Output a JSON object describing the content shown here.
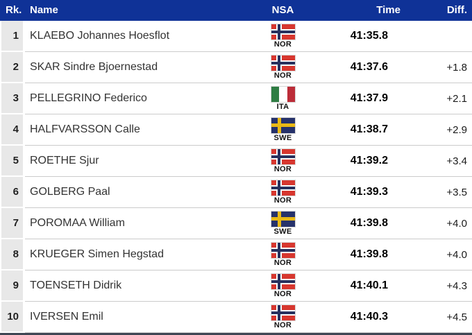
{
  "table": {
    "columns": {
      "rank": "Rk.",
      "name": "Name",
      "nsa": "NSA",
      "time": "Time",
      "diff": "Diff."
    },
    "rows": [
      {
        "rank": "1",
        "name": "KLAEBO Johannes Hoesflot",
        "nsa": "NOR",
        "time": "41:35.8",
        "diff": ""
      },
      {
        "rank": "2",
        "name": "SKAR Sindre Bjoernestad",
        "nsa": "NOR",
        "time": "41:37.6",
        "diff": "+1.8"
      },
      {
        "rank": "3",
        "name": "PELLEGRINO Federico",
        "nsa": "ITA",
        "time": "41:37.9",
        "diff": "+2.1"
      },
      {
        "rank": "4",
        "name": "HALFVARSSON Calle",
        "nsa": "SWE",
        "time": "41:38.7",
        "diff": "+2.9"
      },
      {
        "rank": "5",
        "name": "ROETHE Sjur",
        "nsa": "NOR",
        "time": "41:39.2",
        "diff": "+3.4"
      },
      {
        "rank": "6",
        "name": "GOLBERG Paal",
        "nsa": "NOR",
        "time": "41:39.3",
        "diff": "+3.5"
      },
      {
        "rank": "7",
        "name": "POROMAA William",
        "nsa": "SWE",
        "time": "41:39.8",
        "diff": "+4.0"
      },
      {
        "rank": "8",
        "name": "KRUEGER Simen Hegstad",
        "nsa": "NOR",
        "time": "41:39.8",
        "diff": "+4.0"
      },
      {
        "rank": "9",
        "name": "TOENSETH Didrik",
        "nsa": "NOR",
        "time": "41:40.1",
        "diff": "+4.3"
      },
      {
        "rank": "10",
        "name": "IVERSEN Emil",
        "nsa": "NOR",
        "time": "41:40.3",
        "diff": "+4.5"
      }
    ]
  },
  "colors": {
    "header_bg": "#0f3297",
    "header_text": "#ffffff",
    "rank_cell_bg": "#e8e8e8",
    "row_divider": "#cbcbcb",
    "bottom_bar": "#3e4653",
    "nor_red": "#d7372f",
    "nor_navy": "#27315e",
    "swe_blue": "#26326b",
    "swe_yellow": "#e9b915",
    "ita_green": "#2e7d43",
    "ita_red": "#bc2c38"
  }
}
